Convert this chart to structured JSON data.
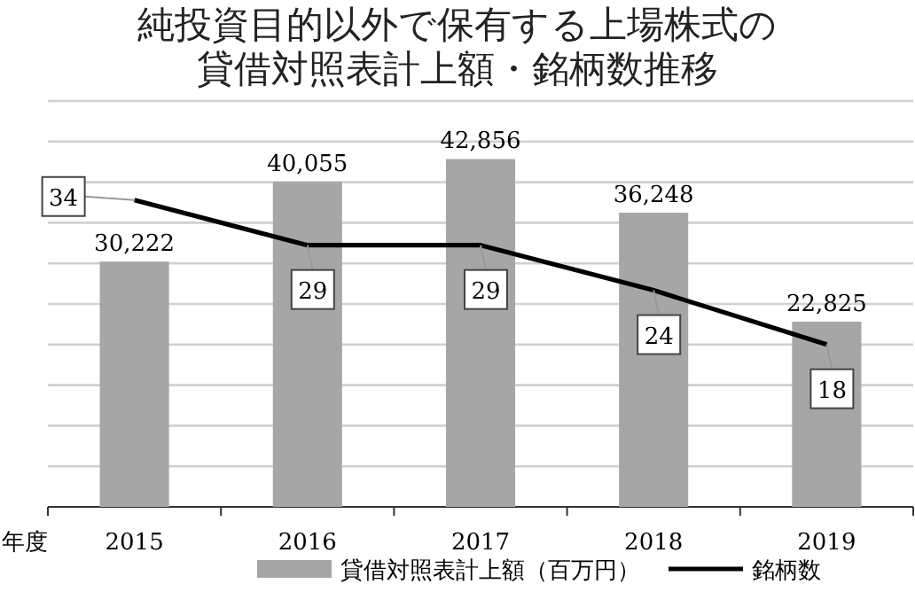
{
  "chart_data": {
    "type": "bar",
    "title": "純投資目的以外で保有する上場株式の貸借対照表計上額・銘柄数推移",
    "xlabel": "年度",
    "categories": [
      "2015",
      "2016",
      "2017",
      "2018",
      "2019"
    ],
    "series": [
      {
        "name": "貸借対照表計上額（百万円）",
        "color": "#a6a6a6",
        "values": [
          30222,
          40055,
          42856,
          36248,
          22825
        ],
        "value_labels": [
          "30,222",
          "40,055",
          "42,856",
          "36,248",
          "22,825"
        ]
      },
      {
        "name": "銘柄数",
        "type": "line",
        "color": "#000000",
        "axis": "y2",
        "marker": "none",
        "values": [
          34,
          29,
          29,
          24,
          18
        ]
      }
    ],
    "grid": "y",
    "legend": "bottom",
    "data_labels": true,
    "tick_labels": "x"
  }
}
